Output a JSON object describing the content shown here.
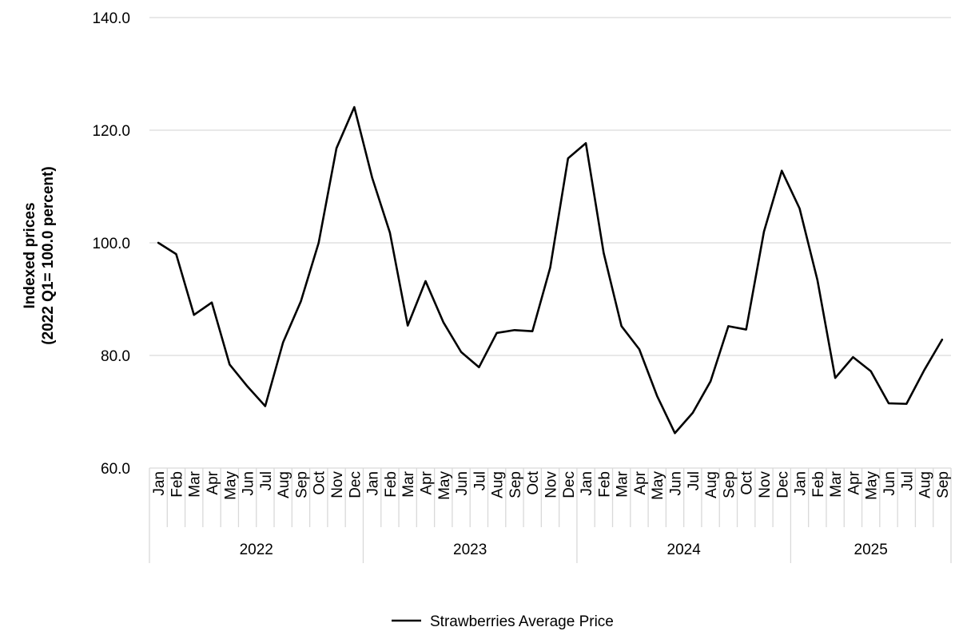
{
  "chart_data": {
    "type": "line",
    "ylabel_lines": [
      "Indexed prices",
      "(2022 Q1= 100.0 percent)"
    ],
    "ylim": [
      60,
      140
    ],
    "yticks": [
      "60.0",
      "80.0",
      "100.0",
      "120.0",
      "140.0"
    ],
    "grid": true,
    "legend_position": "bottom",
    "years": [
      {
        "label": "2022",
        "months": 12
      },
      {
        "label": "2023",
        "months": 12
      },
      {
        "label": "2024",
        "months": 12
      },
      {
        "label": "2025",
        "months": 9
      }
    ],
    "x": [
      "Jan",
      "Feb",
      "Mar",
      "Apr",
      "May",
      "Jun",
      "Jul",
      "Aug",
      "Sep",
      "Oct",
      "Nov",
      "Dec",
      "Jan",
      "Feb",
      "Mar",
      "Apr",
      "May",
      "Jun",
      "Jul",
      "Aug",
      "Sep",
      "Oct",
      "Nov",
      "Dec",
      "Jan",
      "Feb",
      "Mar",
      "Apr",
      "May",
      "Jun",
      "Jul",
      "Aug",
      "Sep",
      "Oct",
      "Nov",
      "Dec",
      "Jan",
      "Feb",
      "Mar",
      "Apr",
      "May",
      "Jun",
      "Jul",
      "Aug",
      "Sep"
    ],
    "series": [
      {
        "name": "Strawberries Average Price",
        "color": "#000000",
        "values": [
          100.0,
          98.0,
          87.2,
          89.4,
          78.4,
          74.5,
          71.0,
          82.3,
          89.6,
          100.0,
          116.8,
          124.1,
          111.6,
          101.8,
          85.3,
          93.2,
          85.9,
          80.6,
          77.9,
          84.0,
          84.5,
          84.3,
          95.6,
          115.0,
          117.7,
          98.2,
          85.2,
          81.1,
          72.8,
          66.2,
          69.8,
          75.4,
          85.2,
          84.6,
          102.0,
          112.8,
          106.1,
          93.4,
          76.0,
          79.7,
          77.2,
          71.5,
          71.4,
          77.4,
          82.8
        ]
      }
    ]
  }
}
